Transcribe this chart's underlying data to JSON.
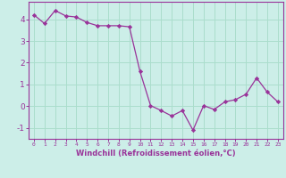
{
  "x": [
    0,
    1,
    2,
    3,
    4,
    5,
    6,
    7,
    8,
    9,
    10,
    11,
    12,
    13,
    14,
    15,
    16,
    17,
    18,
    19,
    20,
    21,
    22,
    23
  ],
  "y": [
    4.2,
    3.8,
    4.4,
    4.15,
    4.1,
    3.85,
    3.7,
    3.7,
    3.7,
    3.65,
    1.6,
    0.03,
    -0.2,
    -0.45,
    -0.2,
    -1.1,
    0.03,
    -0.15,
    0.2,
    0.3,
    0.55,
    1.3,
    0.65,
    0.2
  ],
  "line_color": "#993399",
  "marker": "D",
  "marker_size": 2.2,
  "bg_color": "#cceee8",
  "grid_color": "#aaddcc",
  "xlabel": "Windchill (Refroidissement éolien,°C)",
  "tick_color": "#993399",
  "ylim": [
    -1.5,
    4.8
  ],
  "xlim": [
    -0.5,
    23.5
  ],
  "yticks": [
    -1,
    0,
    1,
    2,
    3,
    4
  ],
  "xticks": [
    0,
    1,
    2,
    3,
    4,
    5,
    6,
    7,
    8,
    9,
    10,
    11,
    12,
    13,
    14,
    15,
    16,
    17,
    18,
    19,
    20,
    21,
    22,
    23
  ]
}
